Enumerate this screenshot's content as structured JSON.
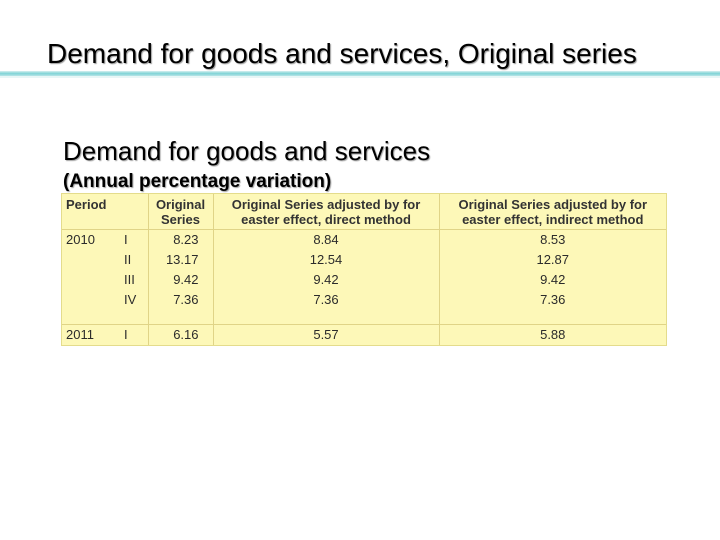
{
  "slide": {
    "title": "Demand for goods and services, Original series",
    "heading": "Demand for goods and services",
    "subheading": "(Annual percentage variation)"
  },
  "table": {
    "headers": {
      "period": "Period",
      "original": "Original Series",
      "direct": "Original Series adjusted by for easter effect, direct method",
      "indirect": "Original Series adjusted by for easter effect, indirect method"
    },
    "rows": [
      {
        "year": "2010",
        "quarter": "I",
        "original": "8.23",
        "direct": "8.84",
        "indirect": "8.53"
      },
      {
        "year": "",
        "quarter": "II",
        "original": "13.17",
        "direct": "12.54",
        "indirect": "12.87"
      },
      {
        "year": "",
        "quarter": "III",
        "original": "9.42",
        "direct": "9.42",
        "indirect": "9.42"
      },
      {
        "year": "",
        "quarter": "IV",
        "original": "7.36",
        "direct": "7.36",
        "indirect": "7.36"
      },
      {
        "year": "2011",
        "quarter": "I",
        "original": "6.16",
        "direct": "5.57",
        "indirect": "5.88"
      }
    ]
  },
  "colors": {
    "table_background": "#fdf8b8",
    "title_rule": "#7fd3d6"
  }
}
